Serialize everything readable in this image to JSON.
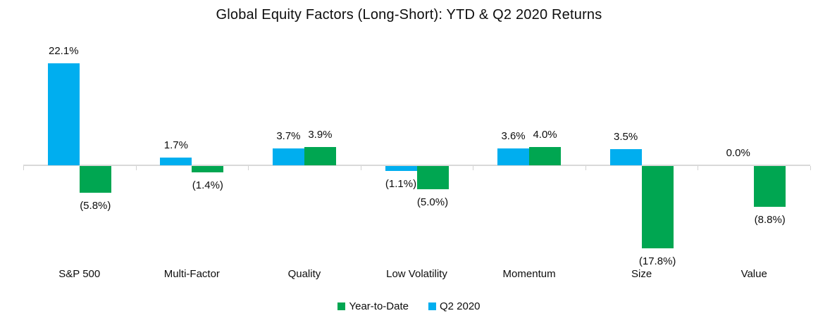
{
  "title": "Global Equity Factors (Long-Short): YTD & Q2 2020 Returns",
  "chart_data": {
    "type": "bar",
    "title": "Global Equity Factors (Long-Short): YTD & Q2 2020 Returns",
    "categories": [
      "S&P 500",
      "Multi-Factor",
      "Quality",
      "Low Volatility",
      "Momentum",
      "Size",
      "Value"
    ],
    "series": [
      {
        "name": "Q2 2020",
        "color": "#00aeef",
        "values": [
          22.1,
          1.7,
          3.7,
          -1.1,
          3.6,
          3.5,
          0.0
        ],
        "labels": [
          "22.1%",
          "1.7%",
          "3.7%",
          "(1.1%)",
          "3.6%",
          "3.5%",
          "0.0%"
        ]
      },
      {
        "name": "Year-to-Date",
        "color": "#00a651",
        "values": [
          -5.8,
          -1.4,
          3.9,
          -5.0,
          4.0,
          -17.8,
          -8.8
        ],
        "labels": [
          "(5.8%)",
          "(1.4%)",
          "3.9%",
          "(5.0%)",
          "4.0%",
          "(17.8%)",
          "(8.8%)"
        ]
      }
    ],
    "legend": [
      {
        "label": "Year-to-Date",
        "color": "#00a651"
      },
      {
        "label": "Q2 2020",
        "color": "#00aeef"
      }
    ],
    "ylim": [
      -20,
      24
    ],
    "grid": "off",
    "legend_position": "bottom",
    "axis_color": "#d9d9d9",
    "value_format": "percent, negatives in parentheses"
  }
}
